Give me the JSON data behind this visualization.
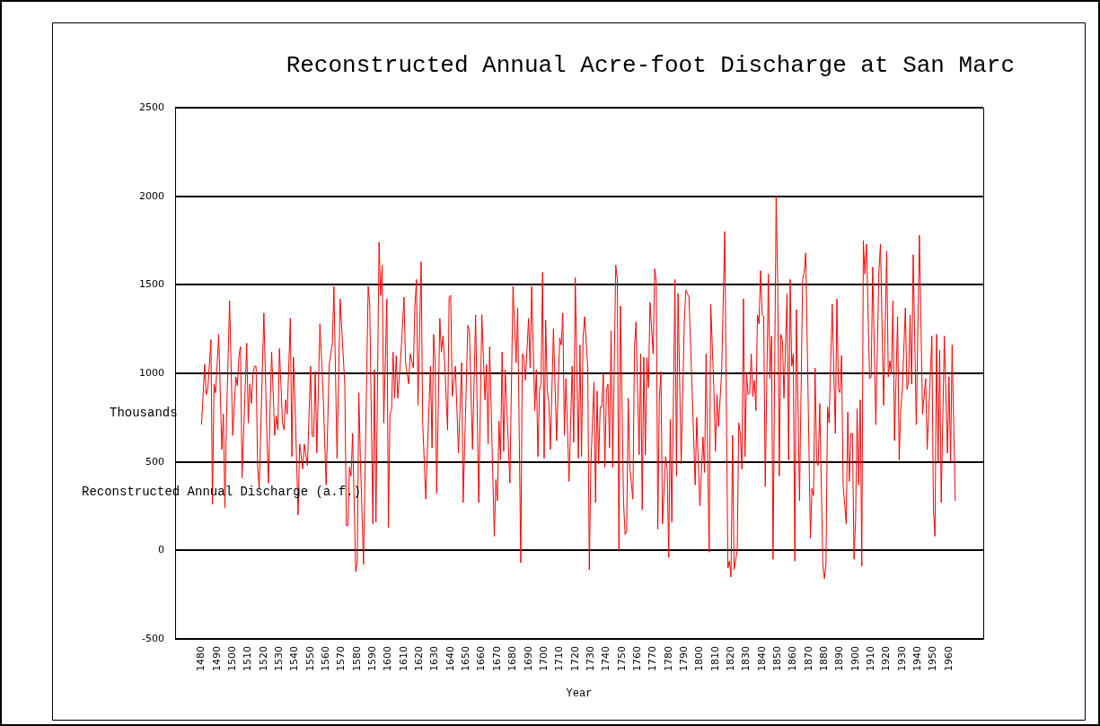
{
  "chart_data": {
    "type": "line",
    "title": "Reconstructed Annual Acre-foot Discharge at San Marc",
    "xlabel": "Year",
    "ylabel": "Reconstructed Annual Discharge (a.f.)",
    "annotations": [
      "Thousands"
    ],
    "xlim": [
      1463,
      1982
    ],
    "xticks": [
      1480,
      1490,
      1500,
      1510,
      1520,
      1530,
      1540,
      1550,
      1560,
      1570,
      1580,
      1590,
      1600,
      1610,
      1620,
      1630,
      1640,
      1650,
      1660,
      1670,
      1680,
      1690,
      1700,
      1710,
      1720,
      1730,
      1740,
      1750,
      1760,
      1770,
      1780,
      1790,
      1800,
      1810,
      1820,
      1830,
      1840,
      1850,
      1860,
      1870,
      1880,
      1890,
      1900,
      1910,
      1920,
      1930,
      1940,
      1950,
      1960
    ],
    "ylim": [
      -500,
      2500
    ],
    "yticks": [
      -500,
      0,
      500,
      1000,
      1500,
      2000,
      2500
    ],
    "grid": "y",
    "legend": false,
    "marker": "none",
    "line_style": "solid",
    "series": [
      {
        "color": "#ff0000",
        "x": [
          1480,
          1482,
          1483,
          1484,
          1486,
          1487,
          1488,
          1489,
          1491,
          1493,
          1494,
          1495,
          1496,
          1498,
          1500,
          1502,
          1503,
          1504,
          1505,
          1506,
          1509,
          1510,
          1511,
          1512,
          1513,
          1514,
          1515,
          1516,
          1517,
          1520,
          1522,
          1523,
          1524,
          1525,
          1527,
          1528,
          1529,
          1530,
          1532,
          1533,
          1534,
          1535,
          1537,
          1538,
          1539,
          1540,
          1542,
          1543,
          1545,
          1546,
          1548,
          1550,
          1551,
          1552,
          1553,
          1554,
          1556,
          1558,
          1560,
          1562,
          1564,
          1565,
          1567,
          1569,
          1572,
          1573,
          1574,
          1575,
          1576,
          1577,
          1579,
          1580,
          1581,
          1582,
          1584,
          1587,
          1588,
          1590,
          1591,
          1592,
          1594,
          1595,
          1596,
          1597,
          1599,
          1600,
          1601,
          1602,
          1603,
          1604,
          1605,
          1606,
          1608,
          1610,
          1611,
          1613,
          1614,
          1616,
          1617,
          1618,
          1619,
          1621,
          1622,
          1624,
          1625,
          1627,
          1628,
          1629,
          1630,
          1631,
          1633,
          1634,
          1635,
          1636,
          1638,
          1639,
          1640,
          1641,
          1643,
          1645,
          1647,
          1648,
          1651,
          1652,
          1654,
          1656,
          1658,
          1660,
          1662,
          1663,
          1664,
          1665,
          1668,
          1669,
          1670,
          1671,
          1672,
          1673,
          1674,
          1675,
          1678,
          1680,
          1682,
          1683,
          1685,
          1686,
          1687,
          1688,
          1690,
          1691,
          1692,
          1694,
          1695,
          1696,
          1697,
          1698,
          1699,
          1700,
          1701,
          1702,
          1703,
          1704,
          1706,
          1708,
          1710,
          1711,
          1712,
          1713,
          1714,
          1716,
          1718,
          1719,
          1720,
          1722,
          1723,
          1724,
          1725,
          1726,
          1728,
          1729,
          1730,
          1732,
          1733,
          1734,
          1735,
          1736,
          1737,
          1738,
          1739,
          1740,
          1741,
          1742,
          1743,
          1744,
          1746,
          1747,
          1748,
          1749,
          1751,
          1752,
          1753,
          1754,
          1755,
          1757,
          1758,
          1759,
          1761,
          1762,
          1763,
          1764,
          1765,
          1766,
          1767,
          1768,
          1770,
          1771,
          1772,
          1773,
          1774,
          1775,
          1776,
          1778,
          1779,
          1780,
          1781,
          1782,
          1784,
          1785,
          1786,
          1788,
          1790,
          1791,
          1793,
          1795,
          1797,
          1798,
          1800,
          1802,
          1803,
          1804,
          1806,
          1807,
          1809,
          1810,
          1811,
          1812,
          1814,
          1816,
          1818,
          1819,
          1820,
          1821,
          1822,
          1824,
          1825,
          1826,
          1827,
          1828,
          1829,
          1830,
          1831,
          1832,
          1833,
          1834,
          1835,
          1836,
          1837,
          1838,
          1839,
          1840,
          1841,
          1842,
          1844,
          1845,
          1846,
          1847,
          1849,
          1850,
          1851,
          1852,
          1853,
          1854,
          1856,
          1857,
          1858,
          1859,
          1860,
          1861,
          1862,
          1864,
          1866,
          1867,
          1868,
          1871,
          1872,
          1873,
          1874,
          1875,
          1876,
          1877,
          1879,
          1880,
          1881,
          1882,
          1883,
          1885,
          1887,
          1888,
          1889,
          1890,
          1891,
          1892,
          1894,
          1895,
          1896,
          1897,
          1898,
          1899,
          1900,
          1901,
          1902,
          1903,
          1904,
          1905,
          1906,
          1907,
          1909,
          1910,
          1911,
          1913,
          1915,
          1916,
          1918,
          1920,
          1921,
          1922,
          1923,
          1924,
          1925,
          1927,
          1928,
          1929,
          1930,
          1932,
          1933,
          1934,
          1935,
          1936,
          1937,
          1939,
          1941,
          1943,
          1945,
          1946,
          1949,
          1950,
          1951,
          1952,
          1953,
          1954,
          1955,
          1957,
          1959,
          1960,
          1961,
          1962,
          1964
        ],
        "values": [
          710,
          1050,
          880,
          910,
          1190,
          260,
          940,
          890,
          1220,
          570,
          770,
          240,
          740,
          1410,
          650,
          980,
          930,
          1100,
          1150,
          410,
          1170,
          720,
          940,
          830,
          1000,
          1040,
          1040,
          470,
          350,
          1340,
          640,
          380,
          800,
          1120,
          650,
          760,
          680,
          1140,
          720,
          680,
          850,
          770,
          1310,
          530,
          1090,
          830,
          200,
          600,
          460,
          600,
          480,
          1040,
          650,
          640,
          1010,
          550,
          1280,
          900,
          370,
          1050,
          1170,
          1490,
          520,
          1420,
          930,
          140,
          140,
          470,
          420,
          660,
          -120,
          -70,
          890,
          520,
          -80,
          1490,
          1390,
          150,
          1020,
          160,
          1740,
          1440,
          1610,
          720,
          1420,
          130,
          770,
          790,
          1120,
          860,
          1100,
          860,
          1100,
          1430,
          1060,
          940,
          1110,
          1030,
          1380,
          1530,
          820,
          1630,
          720,
          290,
          560,
          1040,
          580,
          1220,
          1070,
          320,
          1310,
          1120,
          1210,
          1080,
          680,
          1430,
          1440,
          870,
          1040,
          550,
          1060,
          270,
          1270,
          1240,
          570,
          1330,
          270,
          1330,
          850,
          1050,
          600,
          1150,
          80,
          400,
          280,
          730,
          510,
          1120,
          560,
          1020,
          380,
          1490,
          1060,
          1370,
          -70,
          1110,
          1090,
          960,
          1310,
          1030,
          1490,
          790,
          1020,
          530,
          900,
          940,
          1570,
          520,
          1300,
          900,
          840,
          570,
          1250,
          620,
          1200,
          1160,
          1340,
          650,
          970,
          390,
          1040,
          610,
          1540,
          520,
          1160,
          530,
          1200,
          1320,
          1030,
          -110,
          480,
          950,
          270,
          900,
          490,
          810,
          810,
          1000,
          470,
          910,
          940,
          580,
          1240,
          470,
          1610,
          1530,
          0,
          1380,
          270,
          90,
          110,
          860,
          470,
          290,
          1140,
          1290,
          540,
          1110,
          230,
          1090,
          540,
          1090,
          920,
          1400,
          1110,
          1590,
          1520,
          120,
          860,
          1010,
          150,
          530,
          460,
          -40,
          740,
          160,
          1530,
          420,
          1450,
          490,
          1290,
          1470,
          1430,
          910,
          370,
          750,
          250,
          640,
          440,
          1110,
          -10,
          1390,
          910,
          560,
          880,
          700,
          1010,
          1800,
          -100,
          -60,
          -150,
          650,
          -110,
          0,
          720,
          660,
          460,
          1420,
          530,
          1000,
          880,
          890,
          1110,
          870,
          960,
          790,
          1330,
          1280,
          1580,
          1330,
          1320,
          360,
          1560,
          970,
          1210,
          -50,
          2000,
          1500,
          420,
          1220,
          1190,
          860,
          1450,
          510,
          1530,
          1040,
          1110,
          -60,
          1360,
          280,
          1530,
          1570,
          1680,
          70,
          350,
          310,
          1030,
          500,
          480,
          830,
          -80,
          -160,
          -80,
          810,
          720,
          1390,
          660,
          1420,
          910,
          890,
          1100,
          370,
          150,
          780,
          390,
          660,
          660,
          -50,
          170,
          800,
          370,
          850,
          -90,
          1750,
          1560,
          1730,
          970,
          980,
          1600,
          710,
          1580,
          1730,
          820,
          1690,
          980,
          1070,
          1000,
          1410,
          620,
          1320,
          510,
          790,
          910,
          1370,
          910,
          950,
          1330,
          940,
          1670,
          710,
          1780,
          770,
          970,
          570,
          1210,
          230,
          80,
          1220,
          500,
          1130,
          270,
          1210,
          550,
          980,
          500,
          1160,
          280
        ]
      }
    ]
  }
}
